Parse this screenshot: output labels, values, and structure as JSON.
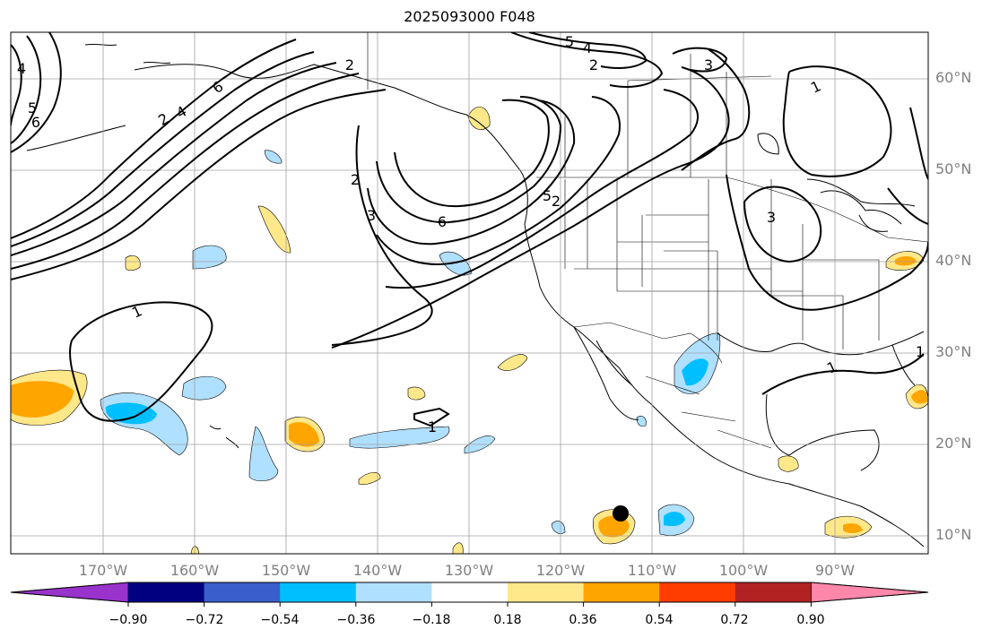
{
  "title": "2025093000 F048",
  "lat_labels": [
    "60°N",
    "50°N",
    "40°N",
    "30°N",
    "20°N",
    "10°N"
  ],
  "lon_labels": [
    "170°W",
    "160°W",
    "150°W",
    "140°W",
    "130°W",
    "120°W",
    "110°W",
    "100°W",
    "90°W"
  ],
  "contour_labels": [
    "1",
    "2",
    "3",
    "4",
    "5",
    "6"
  ],
  "colorbar": {
    "ticks": [
      "−0.90",
      "−0.72",
      "−0.54",
      "−0.36",
      "−0.18",
      "0.18",
      "0.36",
      "0.54",
      "0.72",
      "0.90"
    ],
    "colors": [
      "#9933cc",
      "#000080",
      "#3a5fcd",
      "#00bfff",
      "#b0e0ff",
      "#ffffff",
      "#ffe88a",
      "#ffa500",
      "#ff3d00",
      "#b22222",
      "#ff88aa"
    ]
  },
  "marker": {
    "lat": 12.5,
    "lon": -113.5,
    "color": "#000000"
  }
}
